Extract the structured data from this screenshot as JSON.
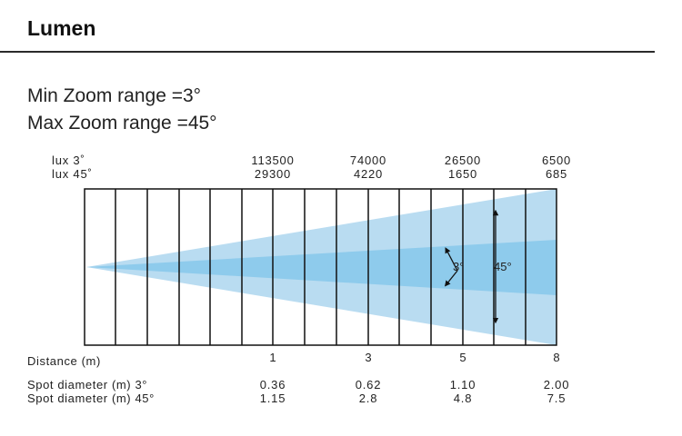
{
  "title": "Lumen",
  "zoom": {
    "min_label": "Min Zoom range =3°",
    "max_label": "Max Zoom range =45°"
  },
  "beam_labels": {
    "narrow": "3°",
    "wide": "45°"
  },
  "rows": {
    "lux_3_label": "lux 3˚",
    "lux_45_label": "lux 45˚",
    "distance_label": "Distance (m)",
    "spot_3_label": "Spot diameter (m) 3°",
    "spot_45_label": "Spot diameter (m) 45°"
  },
  "columns": [
    {
      "lux_3": "113500",
      "lux_45": "29300",
      "distance": "1",
      "spot_3": "0.36",
      "spot_45": "1.15"
    },
    {
      "lux_3": "74000",
      "lux_45": "4220",
      "distance": "3",
      "spot_3": "0.62",
      "spot_45": "2.8"
    },
    {
      "lux_3": "26500",
      "lux_45": "1650",
      "distance": "5",
      "spot_3": "1.10",
      "spot_45": "4.8"
    },
    {
      "lux_3": "6500",
      "lux_45": "685",
      "distance": "8",
      "spot_3": "2.00",
      "spot_45": "7.5"
    }
  ],
  "colors": {
    "wide_beam": "#b9dcf1",
    "narrow_beam": "#8ecbec",
    "grid": "#111111"
  }
}
